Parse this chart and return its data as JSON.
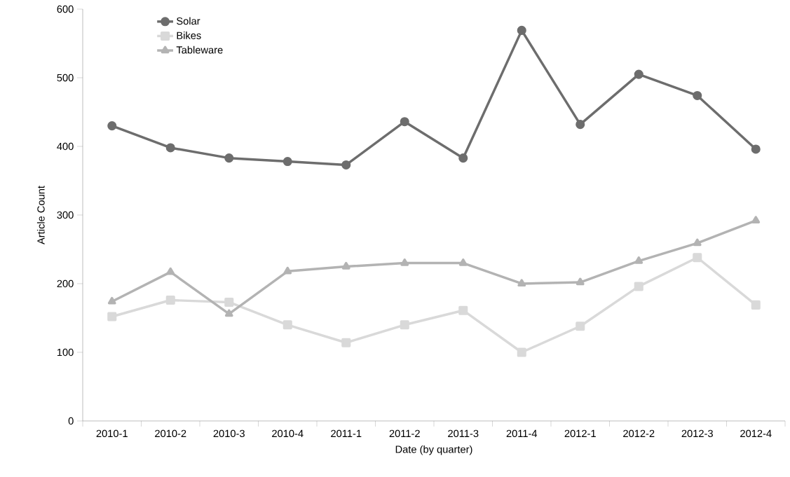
{
  "chart_data": {
    "type": "line",
    "xlabel": "Date (by quarter)",
    "ylabel": "Article Count",
    "categories": [
      "2010-1",
      "2010-2",
      "2010-3",
      "2010-4",
      "2011-1",
      "2011-2",
      "2011-3",
      "2011-4",
      "2012-1",
      "2012-2",
      "2012-3",
      "2012-4"
    ],
    "series": [
      {
        "name": "Solar",
        "color": "#6d6d6d",
        "marker": "circle",
        "values": [
          430,
          398,
          383,
          378,
          373,
          436,
          383,
          569,
          432,
          505,
          474,
          396
        ]
      },
      {
        "name": "Bikes",
        "color": "#d9d9d9",
        "marker": "square",
        "values": [
          152,
          176,
          173,
          140,
          114,
          140,
          161,
          100,
          138,
          196,
          238,
          169
        ]
      },
      {
        "name": "Tableware",
        "color": "#b3b3b3",
        "marker": "triangle",
        "values": [
          174,
          217,
          156,
          218,
          225,
          230,
          230,
          200,
          202,
          233,
          259,
          292
        ]
      }
    ],
    "ylim": [
      0,
      600
    ],
    "yticks": [
      0,
      100,
      200,
      300,
      400,
      500,
      600
    ],
    "grid": false,
    "legend": "top left",
    "line_style": "solid"
  }
}
